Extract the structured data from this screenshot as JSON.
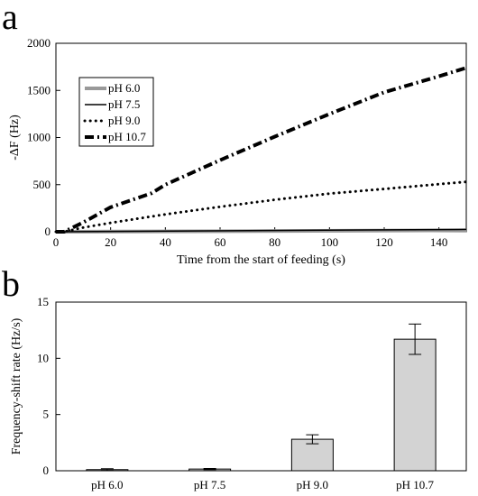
{
  "panels": {
    "a": "a",
    "b": "b"
  },
  "chart_data": [
    {
      "type": "line",
      "xlabel": "Time from the start of feeding (s)",
      "ylabel": "-ΔF (Hz)",
      "xlim": [
        0,
        150
      ],
      "ylim": [
        0,
        2000
      ],
      "xticks": [
        0,
        20,
        40,
        60,
        80,
        100,
        120,
        140
      ],
      "yticks": [
        0,
        500,
        1000,
        1500,
        2000
      ],
      "legend_position": "top-left",
      "series": [
        {
          "name": "pH 6.0",
          "color": "#999999",
          "style": "solid-thick",
          "x": [
            0,
            150
          ],
          "y": [
            0,
            15
          ]
        },
        {
          "name": "pH 7.5",
          "color": "#000000",
          "style": "solid-thin",
          "x": [
            0,
            150
          ],
          "y": [
            0,
            25
          ]
        },
        {
          "name": "pH 9.0",
          "color": "#000000",
          "style": "dotted",
          "x": [
            0,
            3,
            10,
            20,
            40,
            60,
            80,
            100,
            120,
            140,
            150
          ],
          "y": [
            0,
            0,
            45,
            95,
            185,
            265,
            340,
            405,
            455,
            505,
            530
          ]
        },
        {
          "name": "pH 10.7",
          "color": "#000000",
          "style": "dash-dot",
          "x": [
            0,
            3,
            10,
            20,
            30,
            35,
            40,
            60,
            80,
            100,
            120,
            140,
            150
          ],
          "y": [
            0,
            0,
            100,
            260,
            360,
            410,
            500,
            760,
            1010,
            1250,
            1480,
            1650,
            1740
          ]
        }
      ]
    },
    {
      "type": "bar",
      "xlabel": "",
      "ylabel": "Frequency-shift rate (Hz/s)",
      "ylim": [
        0,
        15
      ],
      "yticks": [
        0,
        5,
        10,
        15
      ],
      "categories": [
        "pH 6.0",
        "pH 7.5",
        "pH 9.0",
        "pH 10.7"
      ],
      "values": [
        0.1,
        0.15,
        2.8,
        11.7
      ],
      "errors": [
        0.08,
        0.05,
        0.4,
        1.35
      ],
      "bar_color": "#d3d3d3"
    }
  ]
}
